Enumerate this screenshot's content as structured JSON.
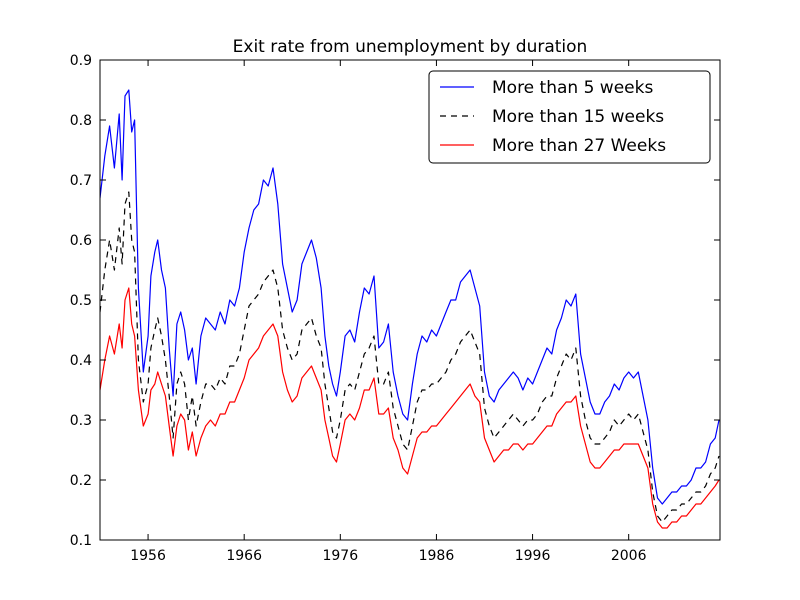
{
  "chart_data": {
    "type": "line",
    "title": "Exit rate from unemployment by duration",
    "xlabel": "",
    "ylabel": "",
    "xlim": [
      1951,
      2015.5
    ],
    "ylim": [
      0.1,
      0.9
    ],
    "x_ticks": [
      1956,
      1966,
      1976,
      1986,
      1996,
      2006
    ],
    "x_tick_labels": [
      "1956",
      "1966",
      "1976",
      "1986",
      "1996",
      "2006"
    ],
    "y_ticks": [
      0.1,
      0.2,
      0.3,
      0.4,
      0.5,
      0.6,
      0.7,
      0.8,
      0.9
    ],
    "y_tick_labels": [
      "0.1",
      "0.2",
      "0.3",
      "0.4",
      "0.5",
      "0.6",
      "0.7",
      "0.8",
      "0.9"
    ],
    "grid": false,
    "legend_position": "top-right",
    "series": [
      {
        "name": "More than 5 weeks",
        "color": "#0000ff",
        "style": "solid",
        "x": [
          1951.0,
          1951.5,
          1952.0,
          1952.5,
          1953.0,
          1953.3,
          1953.6,
          1954.0,
          1954.3,
          1954.6,
          1955.0,
          1955.5,
          1956.0,
          1956.3,
          1956.7,
          1957.0,
          1957.4,
          1957.8,
          1958.2,
          1958.6,
          1959.0,
          1959.4,
          1959.8,
          1960.2,
          1960.6,
          1961.0,
          1961.5,
          1962.0,
          1962.5,
          1963.0,
          1963.5,
          1964.0,
          1964.5,
          1965.0,
          1965.5,
          1966.0,
          1966.5,
          1967.0,
          1967.5,
          1968.0,
          1968.5,
          1969.0,
          1969.5,
          1970.0,
          1970.5,
          1971.0,
          1971.5,
          1972.0,
          1972.5,
          1973.0,
          1973.5,
          1974.0,
          1974.4,
          1974.8,
          1975.2,
          1975.6,
          1976.0,
          1976.5,
          1977.0,
          1977.5,
          1978.0,
          1978.5,
          1979.0,
          1979.5,
          1980.0,
          1980.5,
          1981.0,
          1981.5,
          1982.0,
          1982.5,
          1983.0,
          1983.5,
          1984.0,
          1984.5,
          1985.0,
          1985.5,
          1986.0,
          1986.5,
          1987.0,
          1987.5,
          1988.0,
          1988.5,
          1989.0,
          1989.5,
          1990.0,
          1990.5,
          1991.0,
          1991.5,
          1992.0,
          1992.5,
          1993.0,
          1993.5,
          1994.0,
          1994.5,
          1995.0,
          1995.5,
          1996.0,
          1996.5,
          1997.0,
          1997.5,
          1998.0,
          1998.5,
          1999.0,
          1999.5,
          2000.0,
          2000.5,
          2001.0,
          2001.5,
          2002.0,
          2002.5,
          2003.0,
          2003.5,
          2004.0,
          2004.5,
          2005.0,
          2005.5,
          2006.0,
          2006.5,
          2007.0,
          2007.5,
          2008.0,
          2008.5,
          2009.0,
          2009.5,
          2010.0,
          2010.5,
          2011.0,
          2011.5,
          2012.0,
          2012.5,
          2013.0,
          2013.5,
          2014.0,
          2014.5,
          2015.0,
          2015.4
        ],
        "y": [
          0.67,
          0.74,
          0.79,
          0.72,
          0.81,
          0.7,
          0.84,
          0.85,
          0.78,
          0.8,
          0.52,
          0.38,
          0.44,
          0.54,
          0.58,
          0.6,
          0.55,
          0.52,
          0.42,
          0.34,
          0.46,
          0.48,
          0.45,
          0.4,
          0.42,
          0.36,
          0.44,
          0.47,
          0.46,
          0.45,
          0.48,
          0.46,
          0.5,
          0.49,
          0.52,
          0.58,
          0.62,
          0.65,
          0.66,
          0.7,
          0.69,
          0.72,
          0.66,
          0.56,
          0.52,
          0.48,
          0.5,
          0.56,
          0.58,
          0.6,
          0.57,
          0.52,
          0.44,
          0.39,
          0.36,
          0.34,
          0.38,
          0.44,
          0.45,
          0.43,
          0.48,
          0.52,
          0.51,
          0.54,
          0.42,
          0.43,
          0.46,
          0.38,
          0.34,
          0.31,
          0.3,
          0.36,
          0.41,
          0.44,
          0.43,
          0.45,
          0.44,
          0.46,
          0.48,
          0.5,
          0.5,
          0.53,
          0.54,
          0.55,
          0.52,
          0.49,
          0.38,
          0.34,
          0.33,
          0.35,
          0.36,
          0.37,
          0.38,
          0.37,
          0.35,
          0.37,
          0.36,
          0.38,
          0.4,
          0.42,
          0.41,
          0.45,
          0.47,
          0.5,
          0.49,
          0.51,
          0.41,
          0.37,
          0.33,
          0.31,
          0.31,
          0.33,
          0.34,
          0.36,
          0.35,
          0.37,
          0.38,
          0.37,
          0.38,
          0.34,
          0.3,
          0.22,
          0.17,
          0.16,
          0.17,
          0.18,
          0.18,
          0.19,
          0.19,
          0.2,
          0.22,
          0.22,
          0.23,
          0.26,
          0.27,
          0.3
        ]
      },
      {
        "name": "More than 15 weeks",
        "color": "#000000",
        "style": "dashed",
        "x": [
          1951.0,
          1951.5,
          1952.0,
          1952.5,
          1953.0,
          1953.3,
          1953.6,
          1954.0,
          1954.3,
          1954.6,
          1955.0,
          1955.5,
          1956.0,
          1956.3,
          1956.7,
          1957.0,
          1957.4,
          1957.8,
          1958.2,
          1958.6,
          1959.0,
          1959.4,
          1959.8,
          1960.2,
          1960.6,
          1961.0,
          1961.5,
          1962.0,
          1962.5,
          1963.0,
          1963.5,
          1964.0,
          1964.5,
          1965.0,
          1965.5,
          1966.0,
          1966.5,
          1967.0,
          1967.5,
          1968.0,
          1968.5,
          1969.0,
          1969.5,
          1970.0,
          1970.5,
          1971.0,
          1971.5,
          1972.0,
          1972.5,
          1973.0,
          1973.5,
          1974.0,
          1974.4,
          1974.8,
          1975.2,
          1975.6,
          1976.0,
          1976.5,
          1977.0,
          1977.5,
          1978.0,
          1978.5,
          1979.0,
          1979.5,
          1980.0,
          1980.5,
          1981.0,
          1981.5,
          1982.0,
          1982.5,
          1983.0,
          1983.5,
          1984.0,
          1984.5,
          1985.0,
          1985.5,
          1986.0,
          1986.5,
          1987.0,
          1987.5,
          1988.0,
          1988.5,
          1989.0,
          1989.5,
          1990.0,
          1990.5,
          1991.0,
          1991.5,
          1992.0,
          1992.5,
          1993.0,
          1993.5,
          1994.0,
          1994.5,
          1995.0,
          1995.5,
          1996.0,
          1996.5,
          1997.0,
          1997.5,
          1998.0,
          1998.5,
          1999.0,
          1999.5,
          2000.0,
          2000.5,
          2001.0,
          2001.5,
          2002.0,
          2002.5,
          2003.0,
          2003.5,
          2004.0,
          2004.5,
          2005.0,
          2005.5,
          2006.0,
          2006.5,
          2007.0,
          2007.5,
          2008.0,
          2008.5,
          2009.0,
          2009.5,
          2010.0,
          2010.5,
          2011.0,
          2011.5,
          2012.0,
          2012.5,
          2013.0,
          2013.5,
          2014.0,
          2014.5,
          2015.0,
          2015.4
        ],
        "y": [
          0.48,
          0.55,
          0.6,
          0.55,
          0.62,
          0.56,
          0.66,
          0.68,
          0.6,
          0.58,
          0.4,
          0.33,
          0.36,
          0.42,
          0.45,
          0.47,
          0.44,
          0.4,
          0.34,
          0.27,
          0.36,
          0.38,
          0.36,
          0.3,
          0.34,
          0.29,
          0.33,
          0.36,
          0.36,
          0.35,
          0.37,
          0.36,
          0.39,
          0.39,
          0.41,
          0.45,
          0.49,
          0.5,
          0.51,
          0.53,
          0.54,
          0.55,
          0.52,
          0.45,
          0.42,
          0.4,
          0.41,
          0.45,
          0.46,
          0.47,
          0.44,
          0.42,
          0.36,
          0.32,
          0.28,
          0.27,
          0.3,
          0.35,
          0.36,
          0.35,
          0.38,
          0.41,
          0.42,
          0.44,
          0.36,
          0.36,
          0.38,
          0.32,
          0.29,
          0.26,
          0.25,
          0.29,
          0.33,
          0.35,
          0.35,
          0.36,
          0.36,
          0.37,
          0.38,
          0.4,
          0.41,
          0.43,
          0.44,
          0.45,
          0.43,
          0.41,
          0.32,
          0.29,
          0.27,
          0.28,
          0.29,
          0.3,
          0.31,
          0.3,
          0.29,
          0.3,
          0.3,
          0.31,
          0.33,
          0.34,
          0.34,
          0.37,
          0.39,
          0.41,
          0.4,
          0.42,
          0.34,
          0.3,
          0.27,
          0.26,
          0.26,
          0.27,
          0.28,
          0.3,
          0.29,
          0.3,
          0.31,
          0.3,
          0.31,
          0.28,
          0.25,
          0.18,
          0.14,
          0.13,
          0.14,
          0.15,
          0.15,
          0.16,
          0.16,
          0.17,
          0.18,
          0.18,
          0.19,
          0.21,
          0.22,
          0.24
        ]
      },
      {
        "name": "More than 27 Weeks",
        "color": "#ff0000",
        "style": "solid",
        "x": [
          1951.0,
          1951.5,
          1952.0,
          1952.5,
          1953.0,
          1953.3,
          1953.6,
          1954.0,
          1954.3,
          1954.6,
          1955.0,
          1955.5,
          1956.0,
          1956.3,
          1956.7,
          1957.0,
          1957.4,
          1957.8,
          1958.2,
          1958.6,
          1959.0,
          1959.4,
          1959.8,
          1960.2,
          1960.6,
          1961.0,
          1961.5,
          1962.0,
          1962.5,
          1963.0,
          1963.5,
          1964.0,
          1964.5,
          1965.0,
          1965.5,
          1966.0,
          1966.5,
          1967.0,
          1967.5,
          1968.0,
          1968.5,
          1969.0,
          1969.5,
          1970.0,
          1970.5,
          1971.0,
          1971.5,
          1972.0,
          1972.5,
          1973.0,
          1973.5,
          1974.0,
          1974.4,
          1974.8,
          1975.2,
          1975.6,
          1976.0,
          1976.5,
          1977.0,
          1977.5,
          1978.0,
          1978.5,
          1979.0,
          1979.5,
          1980.0,
          1980.5,
          1981.0,
          1981.5,
          1982.0,
          1982.5,
          1983.0,
          1983.5,
          1984.0,
          1984.5,
          1985.0,
          1985.5,
          1986.0,
          1986.5,
          1987.0,
          1987.5,
          1988.0,
          1988.5,
          1989.0,
          1989.5,
          1990.0,
          1990.5,
          1991.0,
          1991.5,
          1992.0,
          1992.5,
          1993.0,
          1993.5,
          1994.0,
          1994.5,
          1995.0,
          1995.5,
          1996.0,
          1996.5,
          1997.0,
          1997.5,
          1998.0,
          1998.5,
          1999.0,
          1999.5,
          2000.0,
          2000.5,
          2001.0,
          2001.5,
          2002.0,
          2002.5,
          2003.0,
          2003.5,
          2004.0,
          2004.5,
          2005.0,
          2005.5,
          2006.0,
          2006.5,
          2007.0,
          2007.5,
          2008.0,
          2008.5,
          2009.0,
          2009.5,
          2010.0,
          2010.5,
          2011.0,
          2011.5,
          2012.0,
          2012.5,
          2013.0,
          2013.5,
          2014.0,
          2014.5,
          2015.0,
          2015.4
        ],
        "y": [
          0.35,
          0.4,
          0.44,
          0.41,
          0.46,
          0.42,
          0.5,
          0.52,
          0.46,
          0.44,
          0.35,
          0.29,
          0.31,
          0.35,
          0.36,
          0.38,
          0.36,
          0.34,
          0.29,
          0.24,
          0.29,
          0.31,
          0.3,
          0.25,
          0.28,
          0.24,
          0.27,
          0.29,
          0.3,
          0.29,
          0.31,
          0.31,
          0.33,
          0.33,
          0.35,
          0.37,
          0.4,
          0.41,
          0.42,
          0.44,
          0.45,
          0.46,
          0.44,
          0.38,
          0.35,
          0.33,
          0.34,
          0.37,
          0.38,
          0.39,
          0.37,
          0.35,
          0.3,
          0.27,
          0.24,
          0.23,
          0.26,
          0.3,
          0.31,
          0.3,
          0.32,
          0.35,
          0.35,
          0.37,
          0.31,
          0.31,
          0.32,
          0.27,
          0.25,
          0.22,
          0.21,
          0.24,
          0.27,
          0.28,
          0.28,
          0.29,
          0.29,
          0.3,
          0.31,
          0.32,
          0.33,
          0.34,
          0.35,
          0.36,
          0.34,
          0.33,
          0.27,
          0.25,
          0.23,
          0.24,
          0.25,
          0.25,
          0.26,
          0.26,
          0.25,
          0.26,
          0.26,
          0.27,
          0.28,
          0.29,
          0.29,
          0.31,
          0.32,
          0.33,
          0.33,
          0.34,
          0.29,
          0.26,
          0.23,
          0.22,
          0.22,
          0.23,
          0.24,
          0.25,
          0.25,
          0.26,
          0.26,
          0.26,
          0.26,
          0.24,
          0.22,
          0.16,
          0.13,
          0.12,
          0.12,
          0.13,
          0.13,
          0.14,
          0.14,
          0.15,
          0.16,
          0.16,
          0.17,
          0.18,
          0.19,
          0.2
        ]
      }
    ]
  }
}
